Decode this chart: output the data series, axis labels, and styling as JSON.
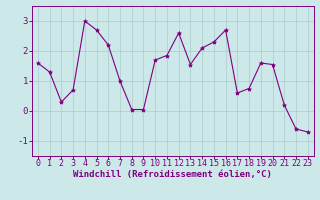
{
  "x": [
    0,
    1,
    2,
    3,
    4,
    5,
    6,
    7,
    8,
    9,
    10,
    11,
    12,
    13,
    14,
    15,
    16,
    17,
    18,
    19,
    20,
    21,
    22,
    23
  ],
  "y": [
    1.6,
    1.3,
    0.3,
    0.7,
    3.0,
    2.7,
    2.2,
    1.0,
    0.05,
    0.05,
    1.7,
    1.85,
    2.6,
    1.55,
    2.1,
    2.3,
    2.7,
    0.6,
    0.75,
    1.6,
    1.55,
    0.2,
    -0.6,
    -0.7
  ],
  "line_color": "#800080",
  "marker_color": "#800080",
  "bg_color": "#cce8e8",
  "grid_color": "#aacccc",
  "xlabel": "Windchill (Refroidissement éolien,°C)",
  "xlim": [
    -0.5,
    23.5
  ],
  "ylim": [
    -1.5,
    3.5
  ],
  "yticks": [
    -1,
    0,
    1,
    2,
    3
  ],
  "xticks": [
    0,
    1,
    2,
    3,
    4,
    5,
    6,
    7,
    8,
    9,
    10,
    11,
    12,
    13,
    14,
    15,
    16,
    17,
    18,
    19,
    20,
    21,
    22,
    23
  ],
  "tick_color": "#800080",
  "label_color": "#800080",
  "label_fontsize": 6.5,
  "tick_fontsize": 6.0
}
